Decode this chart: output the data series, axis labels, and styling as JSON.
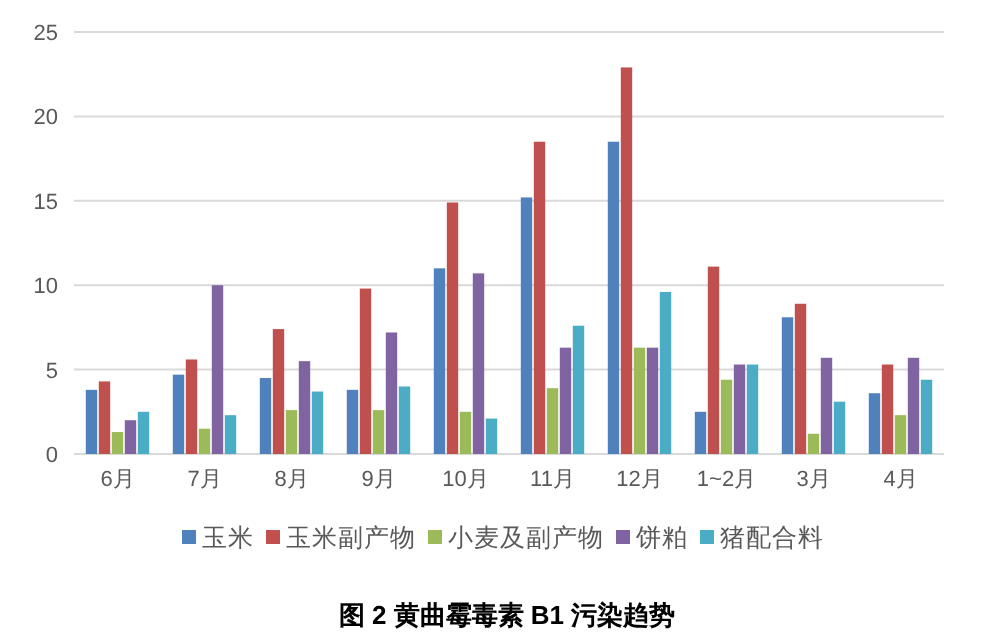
{
  "chart_data": {
    "type": "bar",
    "title": "图 2 黄曲霉毒素 B1 污染趋势",
    "categories": [
      "6月",
      "7月",
      "8月",
      "9月",
      "10月",
      "11月",
      "12月",
      "1~2月",
      "3月",
      "4月"
    ],
    "series": [
      {
        "name": "玉米",
        "color": "#4f81bd",
        "values": [
          3.8,
          4.7,
          4.5,
          3.8,
          11.0,
          15.2,
          18.5,
          2.5,
          8.1,
          3.6
        ]
      },
      {
        "name": "玉米副产物",
        "color": "#c0504d",
        "values": [
          4.3,
          5.6,
          7.4,
          9.8,
          14.9,
          18.5,
          22.9,
          11.1,
          8.9,
          5.3
        ]
      },
      {
        "name": "小麦及副产物",
        "color": "#9bbb59",
        "values": [
          1.3,
          1.5,
          2.6,
          2.6,
          2.5,
          3.9,
          6.3,
          4.4,
          1.2,
          2.3
        ]
      },
      {
        "name": "饼粕",
        "color": "#8064a2",
        "values": [
          2.0,
          10.0,
          5.5,
          7.2,
          10.7,
          6.3,
          6.3,
          5.3,
          5.7,
          5.7
        ]
      },
      {
        "name": "猪配合料",
        "color": "#4bacc6",
        "values": [
          2.5,
          2.3,
          3.7,
          4.0,
          2.1,
          7.6,
          9.6,
          5.3,
          3.1,
          4.4
        ]
      }
    ],
    "ylim": [
      0,
      25
    ],
    "yticks": [
      0,
      5,
      10,
      15,
      20,
      25
    ],
    "grid": "y",
    "legend": "bottom"
  }
}
